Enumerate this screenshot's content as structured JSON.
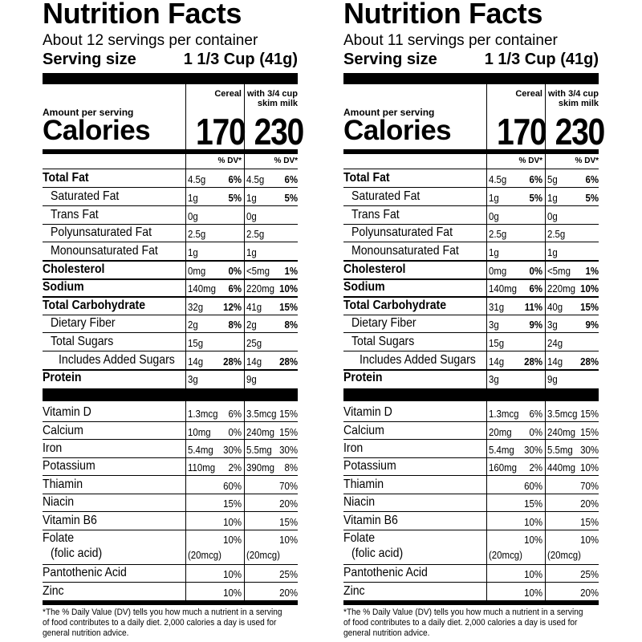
{
  "panels": [
    {
      "title": "Nutrition Facts",
      "servings": "About 12 servings per container",
      "serving_size_label": "Serving size",
      "serving_size_value": "1 1/3 Cup (41g)",
      "col1_header": "Cereal",
      "col2_header_line1": "with 3/4 cup",
      "col2_header_line2": "skim milk",
      "amount_label": "Amount per serving",
      "calories_label": "Calories",
      "calories_col1": "170",
      "calories_col2": "230",
      "dv_col1": "% DV*",
      "dv_col2": "% DV*",
      "nutrients": [
        {
          "name": "Total Fat",
          "bold": true,
          "indent": 0,
          "a1": "4.5g",
          "p1": "6%",
          "a2": "4.5g",
          "p2": "6%"
        },
        {
          "name": "Saturated Fat",
          "bold": false,
          "indent": 1,
          "a1": "1g",
          "p1": "5%",
          "a2": "1g",
          "p2": "5%"
        },
        {
          "name": "Trans Fat",
          "bold": false,
          "indent": 1,
          "a1": "0g",
          "p1": "",
          "a2": "0g",
          "p2": ""
        },
        {
          "name": "Polyunsaturated Fat",
          "bold": false,
          "indent": 1,
          "a1": "2.5g",
          "p1": "",
          "a2": "2.5g",
          "p2": ""
        },
        {
          "name": "Monounsaturated Fat",
          "bold": false,
          "indent": 1,
          "a1": "1g",
          "p1": "",
          "a2": "1g",
          "p2": ""
        },
        {
          "name": "Cholesterol",
          "bold": true,
          "indent": 0,
          "a1": "0mg",
          "p1": "0%",
          "a2": "<5mg",
          "p2": "1%"
        },
        {
          "name": "Sodium",
          "bold": true,
          "indent": 0,
          "a1": "140mg",
          "p1": "6%",
          "a2": "220mg",
          "p2": "10%"
        },
        {
          "name": "Total Carbohydrate",
          "bold": true,
          "indent": 0,
          "a1": "32g",
          "p1": "12%",
          "a2": "41g",
          "p2": "15%"
        },
        {
          "name": "Dietary Fiber",
          "bold": false,
          "indent": 1,
          "a1": "2g",
          "p1": "8%",
          "a2": "2g",
          "p2": "8%"
        },
        {
          "name": "Total Sugars",
          "bold": false,
          "indent": 1,
          "a1": "15g",
          "p1": "",
          "a2": "25g",
          "p2": ""
        },
        {
          "name": "Includes Added Sugars",
          "bold": false,
          "indent": 2,
          "a1": "14g",
          "p1": "28%",
          "a2": "14g",
          "p2": "28%"
        },
        {
          "name": "Protein",
          "bold": true,
          "indent": 0,
          "a1": "3g",
          "p1": "",
          "a2": "9g",
          "p2": ""
        }
      ],
      "vitamins": [
        {
          "name": "Vitamin D",
          "a1": "1.3mcg",
          "p1": "6%",
          "a2": "3.5mcg",
          "p2": "15%"
        },
        {
          "name": "Calcium",
          "a1": "10mg",
          "p1": "0%",
          "a2": "240mg",
          "p2": "15%"
        },
        {
          "name": "Iron",
          "a1": "5.4mg",
          "p1": "30%",
          "a2": "5.5mg",
          "p2": "30%"
        },
        {
          "name": "Potassium",
          "a1": "110mg",
          "p1": "2%",
          "a2": "390mg",
          "p2": "8%"
        },
        {
          "name": "Thiamin",
          "a1": "",
          "p1": "60%",
          "a2": "",
          "p2": "70%"
        },
        {
          "name": "Niacin",
          "a1": "",
          "p1": "15%",
          "a2": "",
          "p2": "20%"
        },
        {
          "name": "Vitamin B6",
          "a1": "",
          "p1": "10%",
          "a2": "",
          "p2": "15%"
        },
        {
          "name": "Folate",
          "name2": "(folic acid)",
          "a1": "(20mcg)",
          "p1": "10%",
          "a2": "(20mcg)",
          "p2": "10%"
        },
        {
          "name": "Pantothenic Acid",
          "a1": "",
          "p1": "10%",
          "a2": "",
          "p2": "25%"
        },
        {
          "name": "Zinc",
          "a1": "",
          "p1": "10%",
          "a2": "",
          "p2": "20%"
        }
      ],
      "footnote": "*The % Daily Value (DV) tells you how much a nutrient in a serving of food contributes to a daily diet. 2,000 calories a day is used for general nutrition advice."
    },
    {
      "title": "Nutrition Facts",
      "servings": "About 11 servings per container",
      "serving_size_label": "Serving size",
      "serving_size_value": "1 1/3 Cup (41g)",
      "col1_header": "Cereal",
      "col2_header_line1": "with 3/4 cup",
      "col2_header_line2": "skim milk",
      "amount_label": "Amount per serving",
      "calories_label": "Calories",
      "calories_col1": "170",
      "calories_col2": "230",
      "dv_col1": "% DV*",
      "dv_col2": "% DV*",
      "nutrients": [
        {
          "name": "Total Fat",
          "bold": true,
          "indent": 0,
          "a1": "4.5g",
          "p1": "6%",
          "a2": "5g",
          "p2": "6%"
        },
        {
          "name": "Saturated Fat",
          "bold": false,
          "indent": 1,
          "a1": "1g",
          "p1": "5%",
          "a2": "1g",
          "p2": "5%"
        },
        {
          "name": "Trans Fat",
          "bold": false,
          "indent": 1,
          "a1": "0g",
          "p1": "",
          "a2": "0g",
          "p2": ""
        },
        {
          "name": "Polyunsaturated Fat",
          "bold": false,
          "indent": 1,
          "a1": "2.5g",
          "p1": "",
          "a2": "2.5g",
          "p2": ""
        },
        {
          "name": "Monounsaturated Fat",
          "bold": false,
          "indent": 1,
          "a1": "1g",
          "p1": "",
          "a2": "1g",
          "p2": ""
        },
        {
          "name": "Cholesterol",
          "bold": true,
          "indent": 0,
          "a1": "0mg",
          "p1": "0%",
          "a2": "<5mg",
          "p2": "1%"
        },
        {
          "name": "Sodium",
          "bold": true,
          "indent": 0,
          "a1": "140mg",
          "p1": "6%",
          "a2": "220mg",
          "p2": "10%"
        },
        {
          "name": "Total Carbohydrate",
          "bold": true,
          "indent": 0,
          "a1": "31g",
          "p1": "11%",
          "a2": "40g",
          "p2": "15%"
        },
        {
          "name": "Dietary Fiber",
          "bold": false,
          "indent": 1,
          "a1": "3g",
          "p1": "9%",
          "a2": "3g",
          "p2": "9%"
        },
        {
          "name": "Total Sugars",
          "bold": false,
          "indent": 1,
          "a1": "15g",
          "p1": "",
          "a2": "24g",
          "p2": ""
        },
        {
          "name": "Includes Added Sugars",
          "bold": false,
          "indent": 2,
          "a1": "14g",
          "p1": "28%",
          "a2": "14g",
          "p2": "28%"
        },
        {
          "name": "Protein",
          "bold": true,
          "indent": 0,
          "a1": "3g",
          "p1": "",
          "a2": "9g",
          "p2": ""
        }
      ],
      "vitamins": [
        {
          "name": "Vitamin D",
          "a1": "1.3mcg",
          "p1": "6%",
          "a2": "3.5mcg",
          "p2": "15%"
        },
        {
          "name": "Calcium",
          "a1": "20mg",
          "p1": "0%",
          "a2": "240mg",
          "p2": "15%"
        },
        {
          "name": "Iron",
          "a1": "5.4mg",
          "p1": "30%",
          "a2": "5.5mg",
          "p2": "30%"
        },
        {
          "name": "Potassium",
          "a1": "160mg",
          "p1": "2%",
          "a2": "440mg",
          "p2": "10%"
        },
        {
          "name": "Thiamin",
          "a1": "",
          "p1": "60%",
          "a2": "",
          "p2": "70%"
        },
        {
          "name": "Niacin",
          "a1": "",
          "p1": "15%",
          "a2": "",
          "p2": "20%"
        },
        {
          "name": "Vitamin B6",
          "a1": "",
          "p1": "10%",
          "a2": "",
          "p2": "15%"
        },
        {
          "name": "Folate",
          "name2": "(folic acid)",
          "a1": "(20mcg)",
          "p1": "10%",
          "a2": "(20mcg)",
          "p2": "10%"
        },
        {
          "name": "Pantothenic Acid",
          "a1": "",
          "p1": "10%",
          "a2": "",
          "p2": "25%"
        },
        {
          "name": "Zinc",
          "a1": "",
          "p1": "10%",
          "a2": "",
          "p2": "20%"
        }
      ],
      "footnote": "*The % Daily Value (DV) tells you how much a nutrient in a serving of food contributes to a daily diet. 2,000 calories a day is used for general nutrition advice."
    }
  ]
}
